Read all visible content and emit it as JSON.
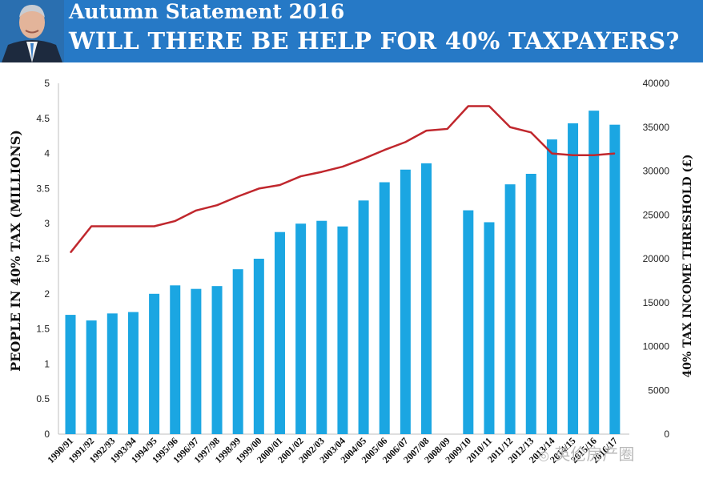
{
  "header": {
    "subtitle": "Autumn Statement 2016",
    "title": "WILL THERE BE HELP FOR 40% TAXPAYERS?"
  },
  "watermark": "英伦房产圈",
  "colors": {
    "banner": "#2679c6",
    "bars": "#1ba6e2",
    "line": "#c0272d"
  },
  "chart_data": {
    "type": "bar",
    "categories": [
      "1990/91",
      "1991/92",
      "1992/93",
      "1993/94",
      "1994/95",
      "1995/96",
      "1996/97",
      "1997/98",
      "1998/99",
      "1999/00",
      "2000/01",
      "2001/02",
      "2002/03",
      "2003/04",
      "2004/05",
      "2005/06",
      "2006/07",
      "2007/08",
      "2008/09",
      "2009/10",
      "2010/11",
      "2011/12",
      "2012/13",
      "2013/14",
      "2014/15",
      "2015/16",
      "2016/17"
    ],
    "series": [
      {
        "type": "bar",
        "axis": "left",
        "values": [
          1.7,
          1.62,
          1.72,
          1.74,
          2.0,
          2.12,
          2.07,
          2.11,
          2.35,
          2.5,
          2.88,
          3.0,
          3.04,
          2.96,
          3.33,
          3.59,
          3.77,
          3.86,
          null,
          3.19,
          3.02,
          3.56,
          3.71,
          4.2,
          4.43,
          4.61,
          4.41
        ]
      },
      {
        "type": "line",
        "axis": "right",
        "values": [
          20700,
          23700,
          23700,
          23700,
          23700,
          24300,
          25500,
          26100,
          27100,
          28000,
          28400,
          29400,
          29900,
          30500,
          31400,
          32400,
          33300,
          34600,
          34800,
          37400,
          37400,
          35000,
          34400,
          32000,
          31800,
          31800,
          32000
        ]
      }
    ],
    "ylabel": "PEOPLE IN 40% TAX (MILLIONS)",
    "y2label": "40% TAX INCOME THRESHOLD (£)",
    "ylim": [
      0,
      5
    ],
    "y2lim": [
      0,
      40000
    ],
    "yticks": [
      "0",
      "0.5",
      "1",
      "1.5",
      "2",
      "2.5",
      "3",
      "3.5",
      "4",
      "4.5",
      "5"
    ],
    "y2ticks": [
      "0",
      "5000",
      "10000",
      "15000",
      "20000",
      "25000",
      "30000",
      "35000",
      "40000"
    ],
    "grid": false,
    "legend": "none"
  }
}
